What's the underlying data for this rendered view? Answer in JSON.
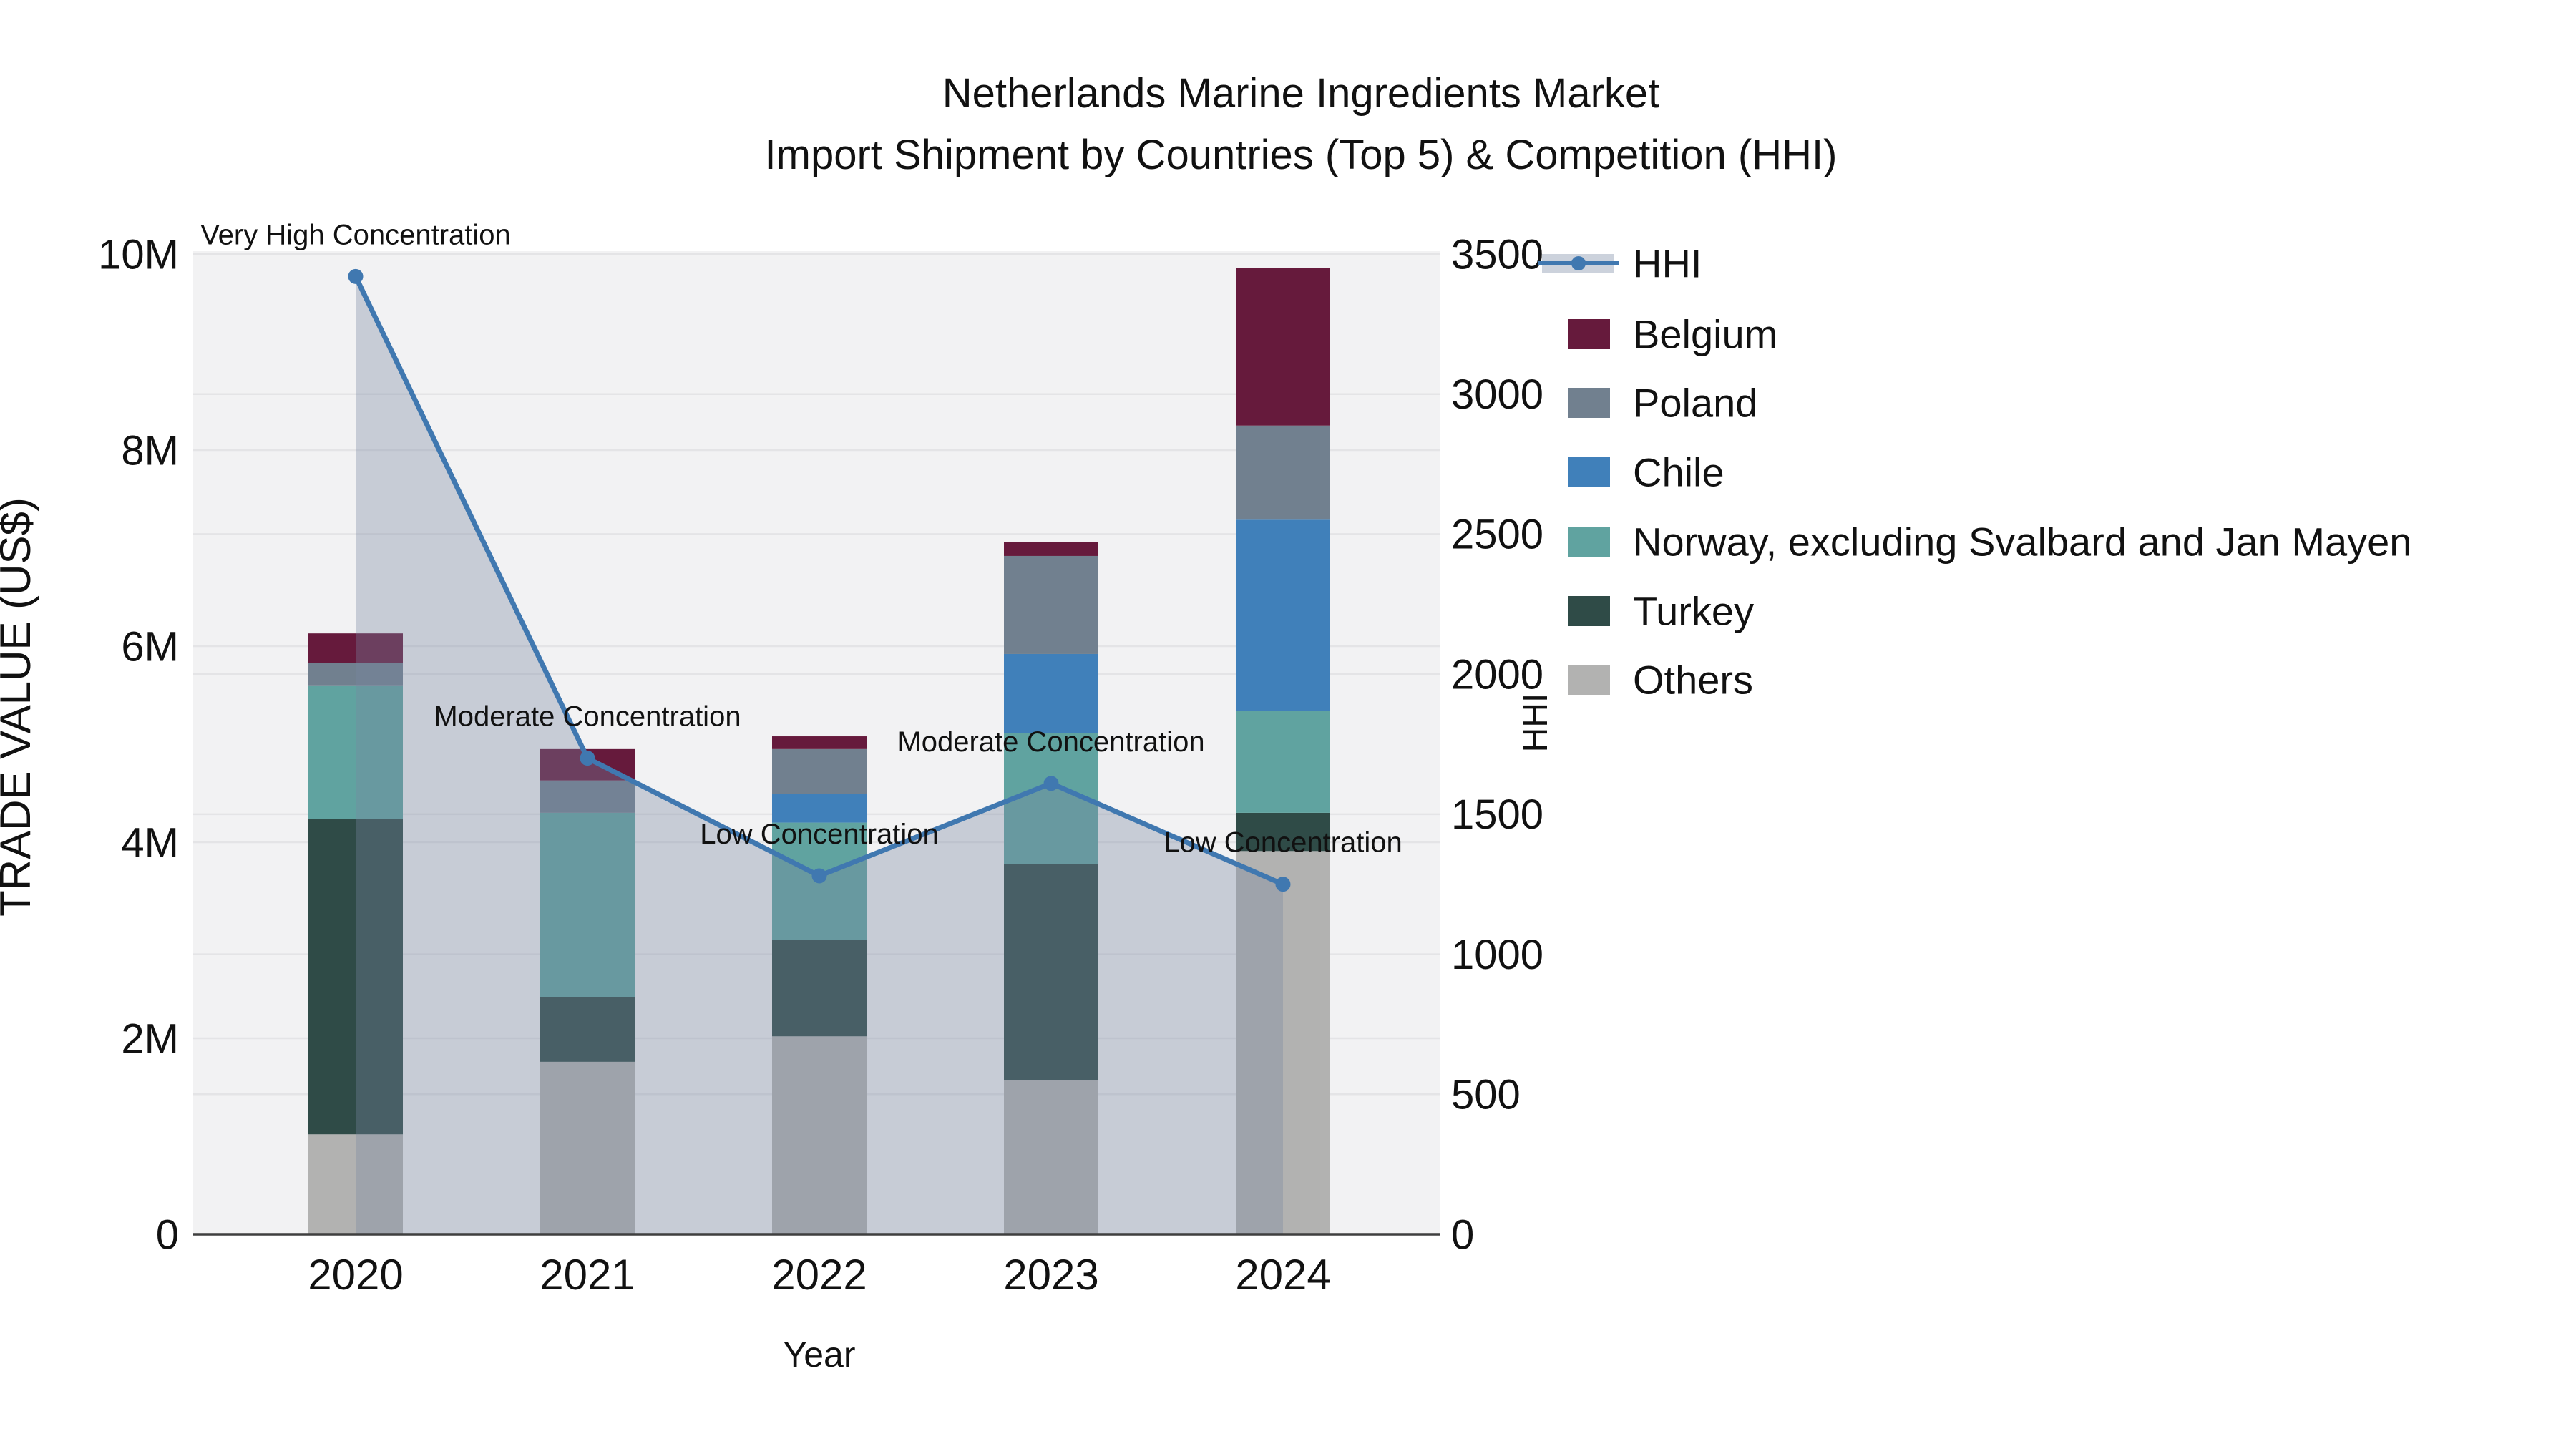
{
  "title": {
    "line1": "Netherlands Marine Ingredients Market",
    "line2": "Import Shipment by Countries (Top 5) & Competition (HHI)"
  },
  "chart_data": {
    "type": "bar",
    "variant": "stacked-bars-with-dual-axis-line-and-area",
    "categories": [
      "2020",
      "2021",
      "2022",
      "2023",
      "2024"
    ],
    "xlabel": "Year",
    "bar_value_unit": "US$ millions (left axis)",
    "series": [
      {
        "name": "Belgium",
        "color": "#661a3c",
        "values_musd": [
          0.3,
          0.32,
          0.13,
          0.14,
          1.61
        ]
      },
      {
        "name": "Poland",
        "color": "#71808f",
        "values_musd": [
          0.23,
          0.33,
          0.46,
          1.0,
          0.96
        ]
      },
      {
        "name": "Chile",
        "color": "#4080ba",
        "values_musd": [
          0.0,
          0.0,
          0.29,
          0.81,
          1.95
        ]
      },
      {
        "name": "Norway, excluding Svalbard and Jan Mayen",
        "color": "#60a3a0",
        "values_musd": [
          1.36,
          1.88,
          1.2,
          1.33,
          1.04
        ]
      },
      {
        "name": "Turkey",
        "color": "#2f4b47",
        "values_musd": [
          3.22,
          0.66,
          0.98,
          2.21,
          0.39
        ]
      },
      {
        "name": "Others",
        "color": "#b2b2b1",
        "values_musd": [
          1.02,
          1.76,
          2.02,
          1.57,
          3.91
        ]
      }
    ],
    "stack_order_bottom_to_top": [
      "Others",
      "Turkey",
      "Norway, excluding Svalbard and Jan Mayen",
      "Chile",
      "Poland",
      "Belgium"
    ],
    "bar_totals_musd": [
      6.13,
      4.95,
      5.08,
      7.06,
      9.86
    ],
    "line_series": {
      "name": "HHI",
      "axis": "right",
      "color": "#4078b0",
      "area_fill": "rgba(120,135,160,0.35)",
      "values": [
        3420,
        1700,
        1280,
        1610,
        1250
      ],
      "point_annotations": [
        "Very High Concentration",
        "Moderate Concentration",
        "Low Concentration",
        "Moderate Concentration",
        "Low Concentration"
      ]
    },
    "y_left": {
      "label": "TRADE VALUE (US$)",
      "range_musd": [
        0,
        10
      ],
      "tick_labels": [
        "0",
        "2M",
        "4M",
        "6M",
        "8M",
        "10M"
      ],
      "tick_values_musd": [
        0,
        2,
        4,
        6,
        8,
        10
      ]
    },
    "y_right": {
      "label": "HHI",
      "range": [
        0,
        3500
      ],
      "tick_labels": [
        "0",
        "500",
        "1000",
        "1500",
        "2000",
        "2500",
        "3000",
        "3500"
      ],
      "tick_values": [
        0,
        500,
        1000,
        1500,
        2000,
        2500,
        3000,
        3500
      ]
    },
    "legend": {
      "position": "top-right",
      "entries": [
        "HHI",
        "Belgium",
        "Poland",
        "Chile",
        "Norway, excluding Svalbard and Jan Mayen",
        "Turkey",
        "Others"
      ]
    },
    "style": {
      "plot_background": "#f2f2f3",
      "gridline_color": "#e4e4e6",
      "axis_line_color": "#3f3f3f",
      "text_color": "#111111",
      "legend_band_color": "#ccd2dc"
    }
  }
}
